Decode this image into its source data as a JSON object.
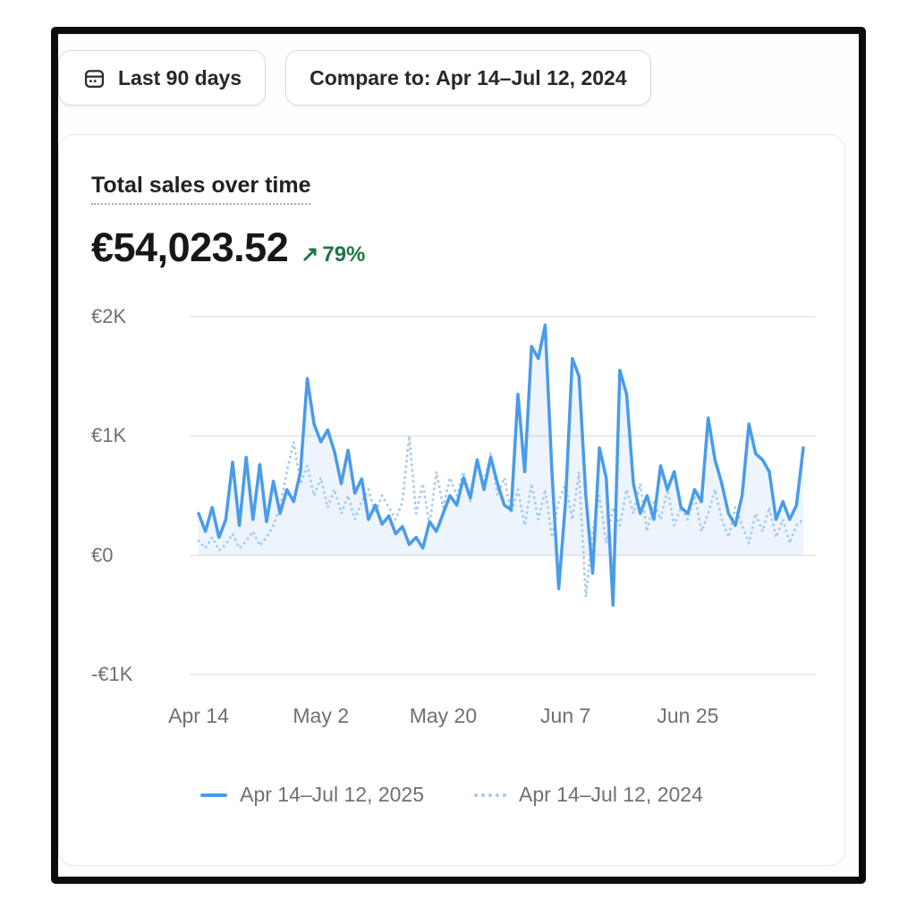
{
  "controls": {
    "date_range_label": "Last 90 days",
    "compare_label": "Compare to: Apr 14–Jul 12, 2024"
  },
  "card": {
    "title": "Total sales over time",
    "total": "€54,023.52",
    "change_arrow": "↗",
    "change_percent": "79%",
    "change_color": "#1b7742"
  },
  "chart_data": {
    "type": "line",
    "title": "Total sales over time",
    "currency": "EUR",
    "days": 90,
    "grid": true,
    "legend_position": "bottom",
    "ylim": [
      -1000,
      2190
    ],
    "y_tick_values": [
      2000,
      1000,
      0,
      -1000
    ],
    "y_tick_labels": [
      "€2K",
      "€1K",
      "€0",
      "-€1K"
    ],
    "x_tick_days": [
      0,
      18,
      36,
      54,
      72
    ],
    "x_tick_labels": [
      "Apr 14",
      "May 2",
      "May 20",
      "Jun 7",
      "Jun 25"
    ],
    "series": [
      {
        "name": "Apr 14–Jul 12, 2025",
        "style": "solid",
        "color": "#4a9be8",
        "area_fill": "rgba(77,148,224,0.10)",
        "values": [
          350,
          200,
          400,
          150,
          300,
          780,
          250,
          820,
          300,
          760,
          280,
          620,
          350,
          550,
          450,
          700,
          1480,
          1100,
          950,
          1050,
          870,
          600,
          880,
          520,
          640,
          300,
          420,
          260,
          330,
          180,
          240,
          90,
          150,
          60,
          280,
          200,
          350,
          500,
          420,
          650,
          480,
          800,
          550,
          820,
          600,
          420,
          380,
          1350,
          700,
          1750,
          1650,
          1930,
          700,
          -280,
          450,
          1650,
          1500,
          500,
          -150,
          900,
          650,
          -420,
          1550,
          1350,
          600,
          350,
          500,
          300,
          750,
          550,
          700,
          400,
          350,
          550,
          450,
          1150,
          800,
          600,
          350,
          250,
          500,
          1100,
          850,
          800,
          700,
          300,
          450,
          300,
          420,
          900
        ]
      },
      {
        "name": "Apr 14–Jul 12, 2024",
        "style": "dotted",
        "color": "#a6cbf1",
        "values": [
          120,
          60,
          150,
          40,
          90,
          180,
          60,
          120,
          200,
          80,
          150,
          250,
          400,
          700,
          950,
          600,
          750,
          500,
          650,
          400,
          550,
          350,
          500,
          300,
          450,
          550,
          350,
          500,
          400,
          300,
          450,
          1000,
          350,
          600,
          250,
          700,
          400,
          650,
          500,
          700,
          450,
          800,
          600,
          860,
          500,
          650,
          350,
          550,
          250,
          600,
          300,
          550,
          150,
          450,
          600,
          300,
          700,
          -350,
          200,
          500,
          100,
          400,
          250,
          550,
          350,
          600,
          200,
          450,
          300,
          550,
          250,
          400,
          300,
          500,
          200,
          350,
          550,
          300,
          150,
          400,
          250,
          100,
          350,
          200,
          400,
          150,
          300,
          100,
          250,
          300
        ]
      }
    ]
  }
}
